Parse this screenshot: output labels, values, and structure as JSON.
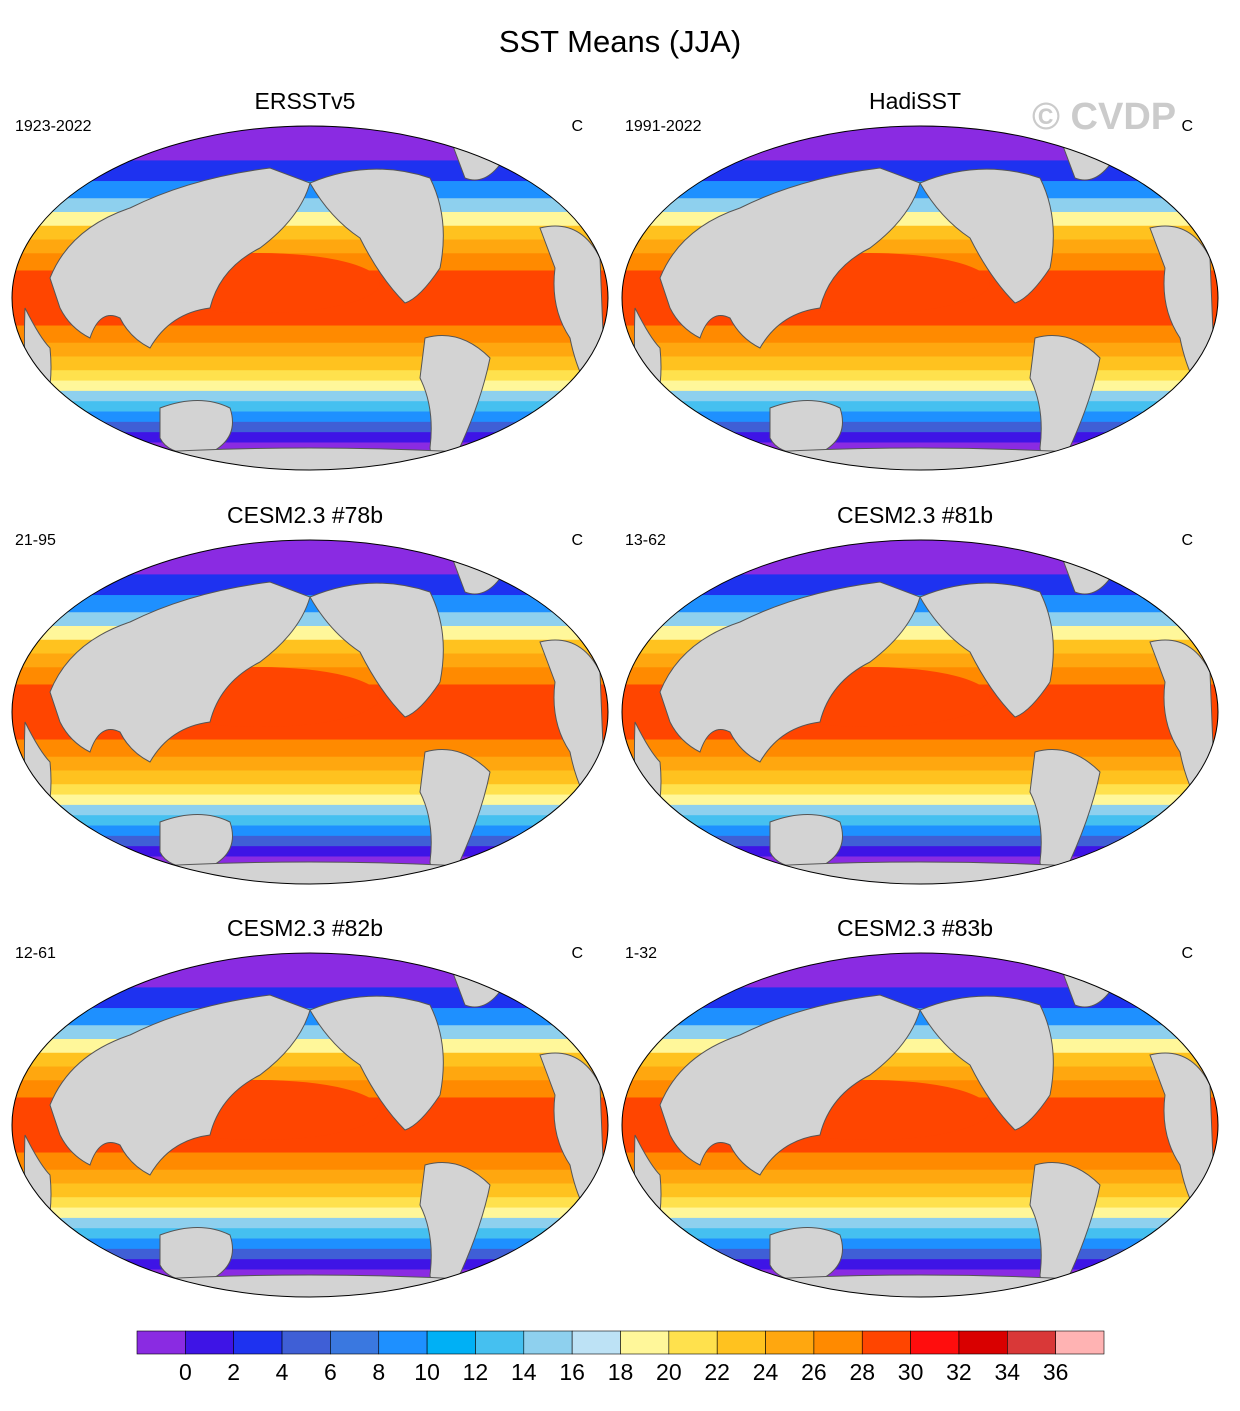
{
  "title": "SST Means (JJA)",
  "watermark": "© CVDP",
  "units_label": "C",
  "panels": [
    {
      "title": "ERSSTv5",
      "period": "1923-2022"
    },
    {
      "title": "HadiSST",
      "period": "1991-2022"
    },
    {
      "title": "CESM2.3 #78b",
      "period": "21-95"
    },
    {
      "title": "CESM2.3 #81b",
      "period": "13-62"
    },
    {
      "title": "CESM2.3 #82b",
      "period": "12-61"
    },
    {
      "title": "CESM2.3 #83b",
      "period": "1-32"
    }
  ],
  "colorbar": {
    "labels": [
      "0",
      "2",
      "4",
      "6",
      "8",
      "10",
      "12",
      "14",
      "16",
      "18",
      "20",
      "22",
      "24",
      "26",
      "28",
      "30",
      "32",
      "34",
      "36"
    ],
    "colors": [
      "#8a2be2",
      "#3e14e6",
      "#1e32f0",
      "#3f5fd6",
      "#3a78e0",
      "#1e90ff",
      "#00b0f5",
      "#45c0f0",
      "#8ed0ee",
      "#bde2f5",
      "#fff79a",
      "#ffe14d",
      "#ffc21f",
      "#ffa70f",
      "#ff8a00",
      "#ff4500",
      "#ff0d0d",
      "#d90000",
      "#d93838",
      "#ffb3b3"
    ]
  },
  "chart_data": {
    "type": "heatmap",
    "title": "SST Means (JJA)",
    "units": "C",
    "projection": "Robinson, Pacific-centered",
    "contour_levels": [
      -1,
      0,
      1,
      2,
      3,
      4,
      5,
      6,
      7,
      8,
      9,
      10,
      11,
      12,
      13,
      14,
      15,
      16,
      17,
      18,
      19,
      20,
      21,
      22,
      23,
      24,
      25,
      26,
      27,
      28,
      29,
      30,
      31,
      32,
      33,
      34,
      35,
      36,
      37
    ],
    "colorbar_range": [
      0,
      36
    ],
    "panels": [
      "ERSSTv5",
      "HadiSST",
      "CESM2.3 #78b",
      "CESM2.3 #81b",
      "CESM2.3 #82b",
      "CESM2.3 #83b"
    ]
  }
}
